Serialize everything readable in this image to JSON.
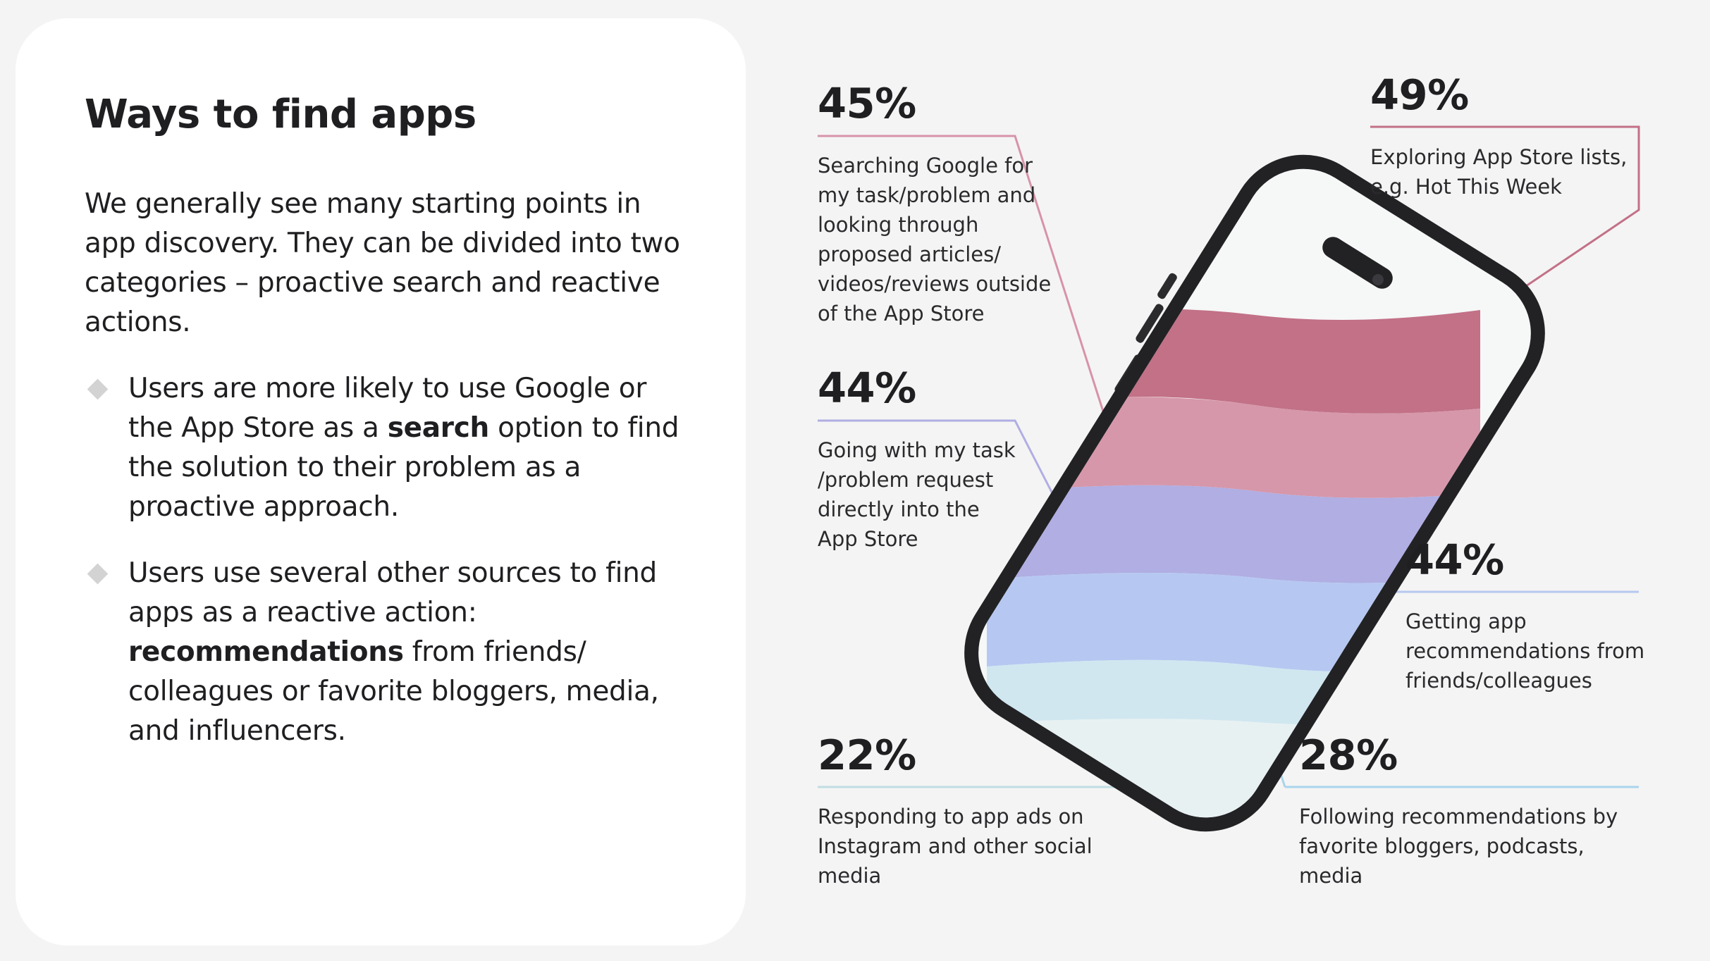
{
  "panel": {
    "title": "Ways to find apps",
    "intro": "We generally see many starting points in app discovery. They can be divided into two categories – proactive search and reactive actions.",
    "bullets": [
      {
        "before": "Users are more likely to use Google or the App Store as a ",
        "bold": "search",
        "after": " option to find the solution to their problem as a proactive approach."
      },
      {
        "before": "Users use several other sources to find apps as a reactive action: ",
        "bold": "recommendations",
        "after": " from friends/ colleagues or favorite bloggers, media, and influencers."
      }
    ]
  },
  "stats": [
    {
      "id": "google",
      "percent": "45%",
      "value": 45,
      "color": "#d793a8",
      "description": "Searching Google for my task/problem and looking through proposed articles/ videos/reviews outside of the App Store"
    },
    {
      "id": "appstore-lists",
      "percent": "49%",
      "value": 49,
      "color": "#c27187",
      "description": "Exploring App Store lists, e.g. Hot This Week"
    },
    {
      "id": "appstore-direct",
      "percent": "44%",
      "value": 44,
      "color": "#b0aee3",
      "description": "Going with my task /problem request directly into the App Store"
    },
    {
      "id": "friends",
      "percent": "44%",
      "value": 44,
      "color": "#b6c8f1",
      "description": "Getting app recommendations from friends/colleagues"
    },
    {
      "id": "ads",
      "percent": "22%",
      "value": 22,
      "color": "#c0dde3",
      "description": "Responding to app ads on Instagram and other social media"
    },
    {
      "id": "bloggers",
      "percent": "28%",
      "value": 28,
      "color": "#a9d4ec",
      "description": "Following recommendations by favorite bloggers, podcasts, media"
    }
  ],
  "phone_bands": [
    "#c27187",
    "#d697aa",
    "#b0aee3",
    "#b6c8f1",
    "#d0e7f0",
    "#e8f1f2"
  ]
}
